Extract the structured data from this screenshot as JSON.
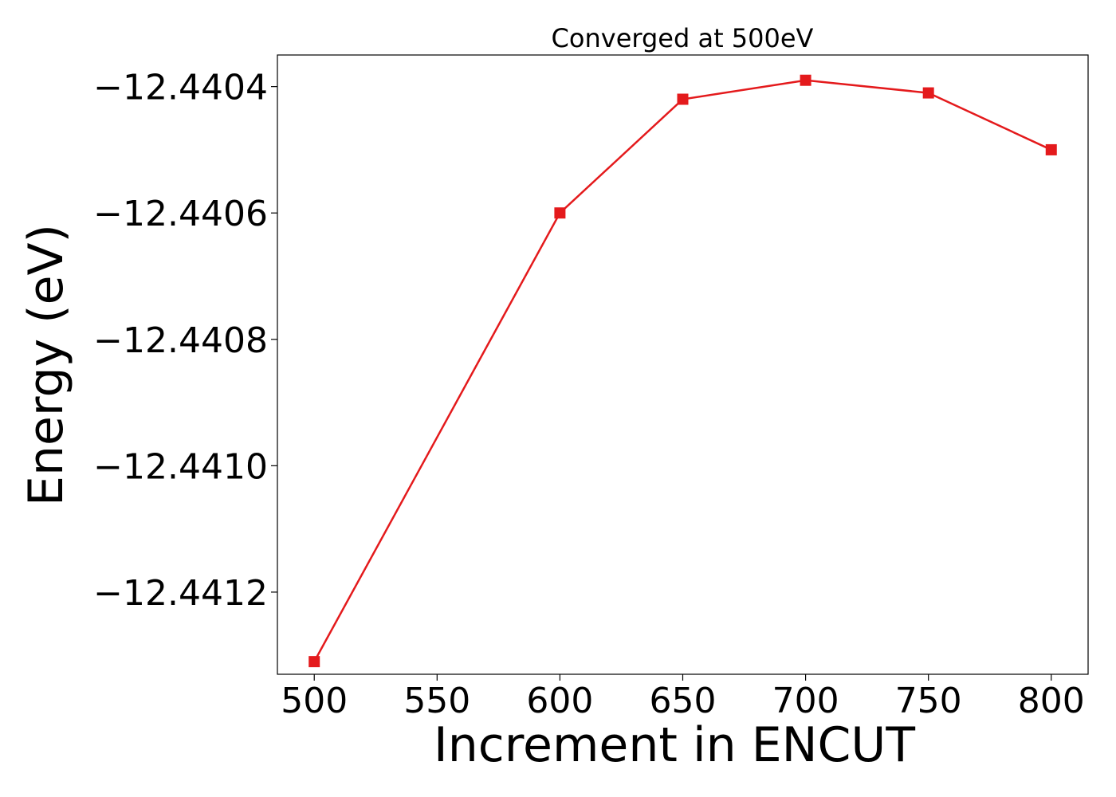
{
  "chart_data": {
    "type": "line",
    "title": "Converged at 500eV",
    "xlabel": "Increment in ENCUT",
    "ylabel": "Energy (eV)",
    "x": [
      500,
      600,
      650,
      700,
      750,
      800
    ],
    "series": [
      {
        "values": [
          -12.44131,
          -12.4406,
          -12.44042,
          -12.44039,
          -12.44041,
          -12.4405
        ],
        "color": "#e41a1c",
        "marker": "square"
      }
    ],
    "xlim": [
      485,
      815
    ],
    "ylim": [
      -12.44133,
      -12.44035
    ],
    "xticks": [
      500,
      550,
      600,
      650,
      700,
      750,
      800
    ],
    "xtick_labels": [
      "500",
      "550",
      "600",
      "650",
      "700",
      "750",
      "800"
    ],
    "yticks": [
      -12.4412,
      -12.441,
      -12.4408,
      -12.4406,
      -12.4404
    ],
    "ytick_labels": [
      "−12.4412",
      "−12.4410",
      "−12.4408",
      "−12.4406",
      "−12.4404"
    ],
    "grid": false,
    "legend": "none"
  }
}
